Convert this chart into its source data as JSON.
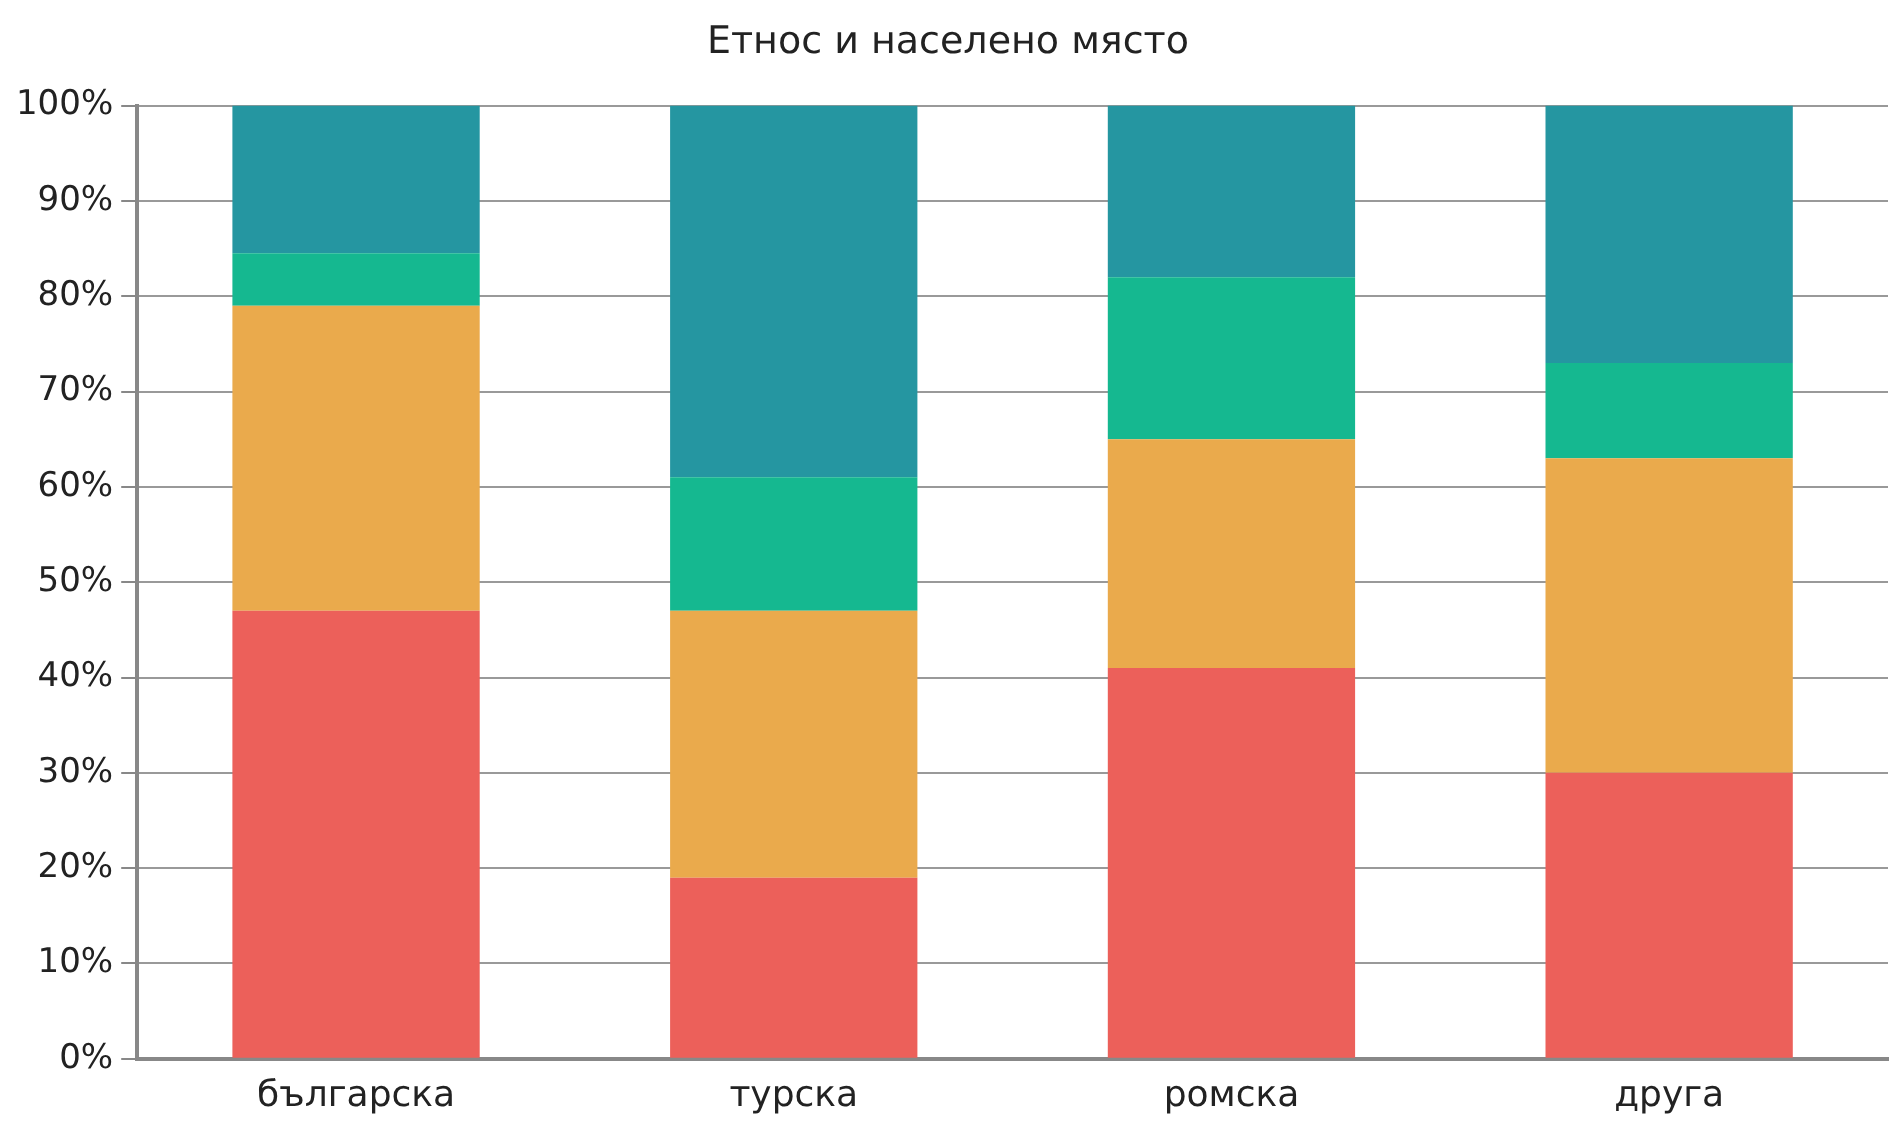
{
  "chart_data": {
    "type": "bar",
    "title": "Етнос и населено място",
    "categories": [
      "българска",
      "турска",
      "ромска",
      "друга"
    ],
    "stacked": true,
    "series": [
      {
        "color": "#ec605a",
        "values": [
          47,
          19,
          41,
          30
        ]
      },
      {
        "color": "#eaaa4c",
        "values": [
          32,
          28,
          24,
          33
        ]
      },
      {
        "color": "#15b890",
        "values": [
          5.5,
          14,
          17,
          10
        ]
      },
      {
        "color": "#2596a1",
        "values": [
          15.5,
          39,
          18,
          27
        ]
      }
    ],
    "ylim": [
      0,
      100
    ],
    "yticks": [
      {
        "value": 0,
        "label": "0%"
      },
      {
        "value": 10,
        "label": "10%"
      },
      {
        "value": 20,
        "label": "20%"
      },
      {
        "value": 30,
        "label": "30%"
      },
      {
        "value": 40,
        "label": "40%"
      },
      {
        "value": 50,
        "label": "50%"
      },
      {
        "value": 60,
        "label": "60%"
      },
      {
        "value": 70,
        "label": "70%"
      },
      {
        "value": 80,
        "label": "80%"
      },
      {
        "value": 90,
        "label": "90%"
      },
      {
        "value": 100,
        "label": "100%"
      }
    ],
    "grid": "y",
    "legend": false
  }
}
